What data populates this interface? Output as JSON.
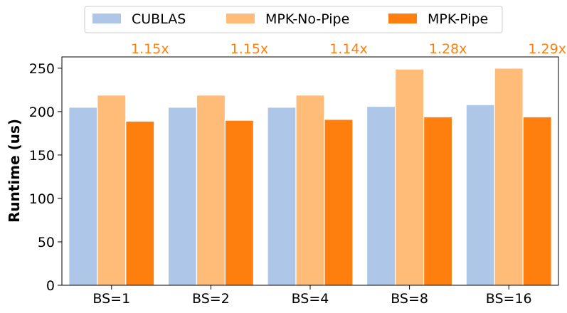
{
  "chart_data": {
    "type": "bar",
    "categories": [
      "BS=1",
      "BS=2",
      "BS=4",
      "BS=8",
      "BS=16"
    ],
    "series": [
      {
        "name": "CUBLAS",
        "values": [
          205,
          205,
          205,
          206,
          208
        ],
        "color": "#aec7e8"
      },
      {
        "name": "MPK-No-Pipe",
        "values": [
          219,
          219,
          219,
          249,
          250
        ],
        "color": "#ffbb78"
      },
      {
        "name": "MPK-Pipe",
        "values": [
          189,
          190,
          191,
          194,
          194
        ],
        "color": "#ff7f0e"
      }
    ],
    "annotations": [
      "1.15x",
      "1.15x",
      "1.14x",
      "1.28x",
      "1.29x"
    ],
    "annotation_color": "#ff7f0e",
    "ylabel": "Runtime (us)",
    "xlabel": "",
    "ylim": [
      0,
      263
    ],
    "yticks": [
      0,
      50,
      100,
      150,
      200,
      250
    ],
    "legend_position": "top-center",
    "grid": false
  }
}
